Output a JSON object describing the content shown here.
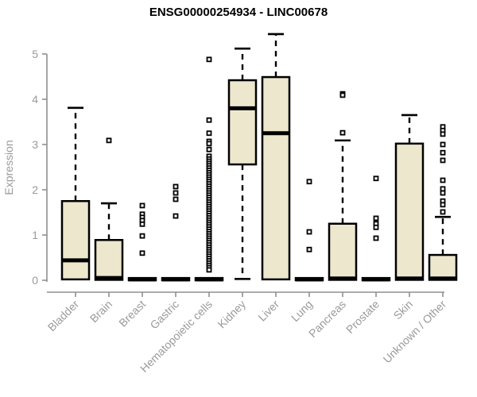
{
  "title": "ENSG00000254934 - LINC00678",
  "colors": {
    "box_fill": "#ece7cd",
    "box_stroke": "#000000",
    "median": "#000000",
    "whisker": "#000000",
    "outlier_stroke": "#000000",
    "axis_line": "#8f8f8f",
    "tick_text": "#9a9a9a",
    "title_text": "#000000",
    "background": "#ffffff"
  },
  "chart_data": {
    "type": "boxplot",
    "title": "ENSG00000254934 - LINC00678",
    "xlabel": "",
    "ylabel": "Expression",
    "ylim": [
      0,
      5.5
    ],
    "yticks": [
      0,
      1,
      2,
      3,
      4,
      5
    ],
    "grid": false,
    "legend": "none",
    "categories": [
      "Bladder",
      "Brain",
      "Breast",
      "Gastric",
      "Hematopoietic cells",
      "Kidney",
      "Liver",
      "Lung",
      "Pancreas",
      "Prostate",
      "Skin",
      "Unknown / Other"
    ],
    "boxes": [
      {
        "category": "Bladder",
        "q1": 0.02,
        "median": 0.44,
        "q3": 1.75,
        "whisker_low": 0.02,
        "whisker_high": 3.81,
        "outliers": []
      },
      {
        "category": "Brain",
        "q1": 0.01,
        "median": 0.05,
        "q3": 0.89,
        "whisker_low": 0.01,
        "whisker_high": 1.7,
        "outliers": [
          3.09
        ]
      },
      {
        "category": "Breast",
        "q1": 0,
        "median": 0.02,
        "q3": 0.05,
        "whisker_low": 0,
        "whisker_high": 0.05,
        "outliers": [
          1.65,
          1.46,
          1.39,
          1.32,
          1.24,
          0.98,
          0.6
        ]
      },
      {
        "category": "Gastric",
        "q1": 0,
        "median": 0.02,
        "q3": 0.05,
        "whisker_low": 0,
        "whisker_high": 0.05,
        "outliers": [
          2.07,
          1.93,
          1.79,
          1.42
        ]
      },
      {
        "category": "Hematopoietic cells",
        "q1": 0,
        "median": 0.02,
        "q3": 0.05,
        "whisker_low": 0,
        "whisker_high": 0.05,
        "outliers": [
          4.88,
          3.54,
          3.25,
          3.07,
          3.02,
          2.89,
          2.74,
          2.68,
          2.63,
          2.58,
          2.53,
          2.48,
          2.43,
          2.38,
          2.33,
          2.28,
          2.23,
          2.18,
          2.13,
          2.08,
          2.03,
          1.98,
          1.93,
          1.88,
          1.83,
          1.78,
          1.73,
          1.68,
          1.63,
          1.58,
          1.53,
          1.48,
          1.43,
          1.38,
          1.33,
          1.28,
          1.23,
          1.18,
          1.13,
          1.08,
          1.03,
          0.98,
          0.93,
          0.88,
          0.83,
          0.78,
          0.73,
          0.68,
          0.63,
          0.58,
          0.53,
          0.48,
          0.43,
          0.38,
          0.33,
          0.28,
          0.23
        ]
      },
      {
        "category": "Kidney",
        "q1": 2.56,
        "median": 3.8,
        "q3": 4.42,
        "whisker_low": 0.03,
        "whisker_high": 5.12,
        "outliers": []
      },
      {
        "category": "Liver",
        "q1": 0.02,
        "median": 3.25,
        "q3": 4.49,
        "whisker_low": 0.02,
        "whisker_high": 5.44,
        "outliers": []
      },
      {
        "category": "Lung",
        "q1": 0,
        "median": 0.02,
        "q3": 0.05,
        "whisker_low": 0,
        "whisker_high": 0.05,
        "outliers": [
          2.18,
          1.07,
          0.68
        ]
      },
      {
        "category": "Pancreas",
        "q1": 0.01,
        "median": 0.04,
        "q3": 1.25,
        "whisker_low": 0.01,
        "whisker_high": 3.09,
        "outliers": [
          4.12,
          4.09,
          3.26
        ]
      },
      {
        "category": "Prostate",
        "q1": 0,
        "median": 0.02,
        "q3": 0.05,
        "whisker_low": 0,
        "whisker_high": 0.05,
        "outliers": [
          2.25,
          1.37,
          1.25,
          1.17,
          0.93
        ]
      },
      {
        "category": "Skin",
        "q1": 0.01,
        "median": 0.04,
        "q3": 3.02,
        "whisker_low": 0.01,
        "whisker_high": 3.65,
        "outliers": []
      },
      {
        "category": "Unknown / Other",
        "q1": 0.01,
        "median": 0.04,
        "q3": 0.56,
        "whisker_low": 0.01,
        "whisker_high": 1.4,
        "outliers": [
          3.39,
          3.31,
          3.23,
          3.0,
          2.82,
          2.65,
          2.21,
          2.02,
          1.93,
          1.75,
          1.67,
          1.51
        ]
      }
    ]
  }
}
